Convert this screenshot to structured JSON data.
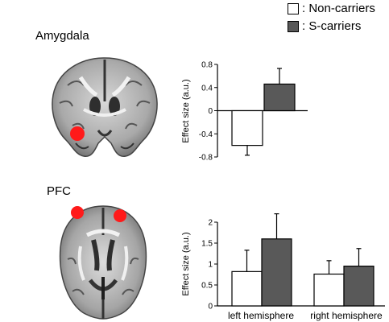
{
  "legend": {
    "items": [
      {
        "label": ": Non-carriers",
        "color": "#ffffff"
      },
      {
        "label": ": S-carriers",
        "color": "#595959"
      }
    ]
  },
  "panels": {
    "top_label": "Amygdala",
    "bottom_label": "PFC"
  },
  "colors": {
    "non_carriers": "#ffffff",
    "s_carriers": "#595959",
    "highlight": "#ff1a1a"
  },
  "icons": [
    "coronal-brain-slice-icon",
    "axial-brain-slice-icon"
  ],
  "chart_data": [
    {
      "type": "bar",
      "ylabel": "Effect size (a.u.)",
      "ylim": [
        -0.8,
        0.8
      ],
      "yticks": [
        "0.8",
        "0.4",
        "0",
        "-0.4",
        "-0.8"
      ],
      "categories": [
        ""
      ],
      "series": [
        {
          "name": "Non-carriers",
          "values": [
            -0.6
          ],
          "errors": [
            0.17
          ]
        },
        {
          "name": "S-carriers",
          "values": [
            0.46
          ],
          "errors": [
            0.27
          ]
        }
      ]
    },
    {
      "type": "bar",
      "ylabel": "Effect size (a.u.)",
      "ylim": [
        0,
        2
      ],
      "yticks": [
        "2",
        "1.5",
        "1",
        "0.5",
        "0"
      ],
      "categories": [
        "left hemisphere",
        "right hemisphere"
      ],
      "series": [
        {
          "name": "Non-carriers",
          "values": [
            0.82,
            0.76
          ],
          "errors": [
            0.51,
            0.32
          ]
        },
        {
          "name": "S-carriers",
          "values": [
            1.6,
            0.95
          ],
          "errors": [
            0.6,
            0.42
          ]
        }
      ]
    }
  ]
}
